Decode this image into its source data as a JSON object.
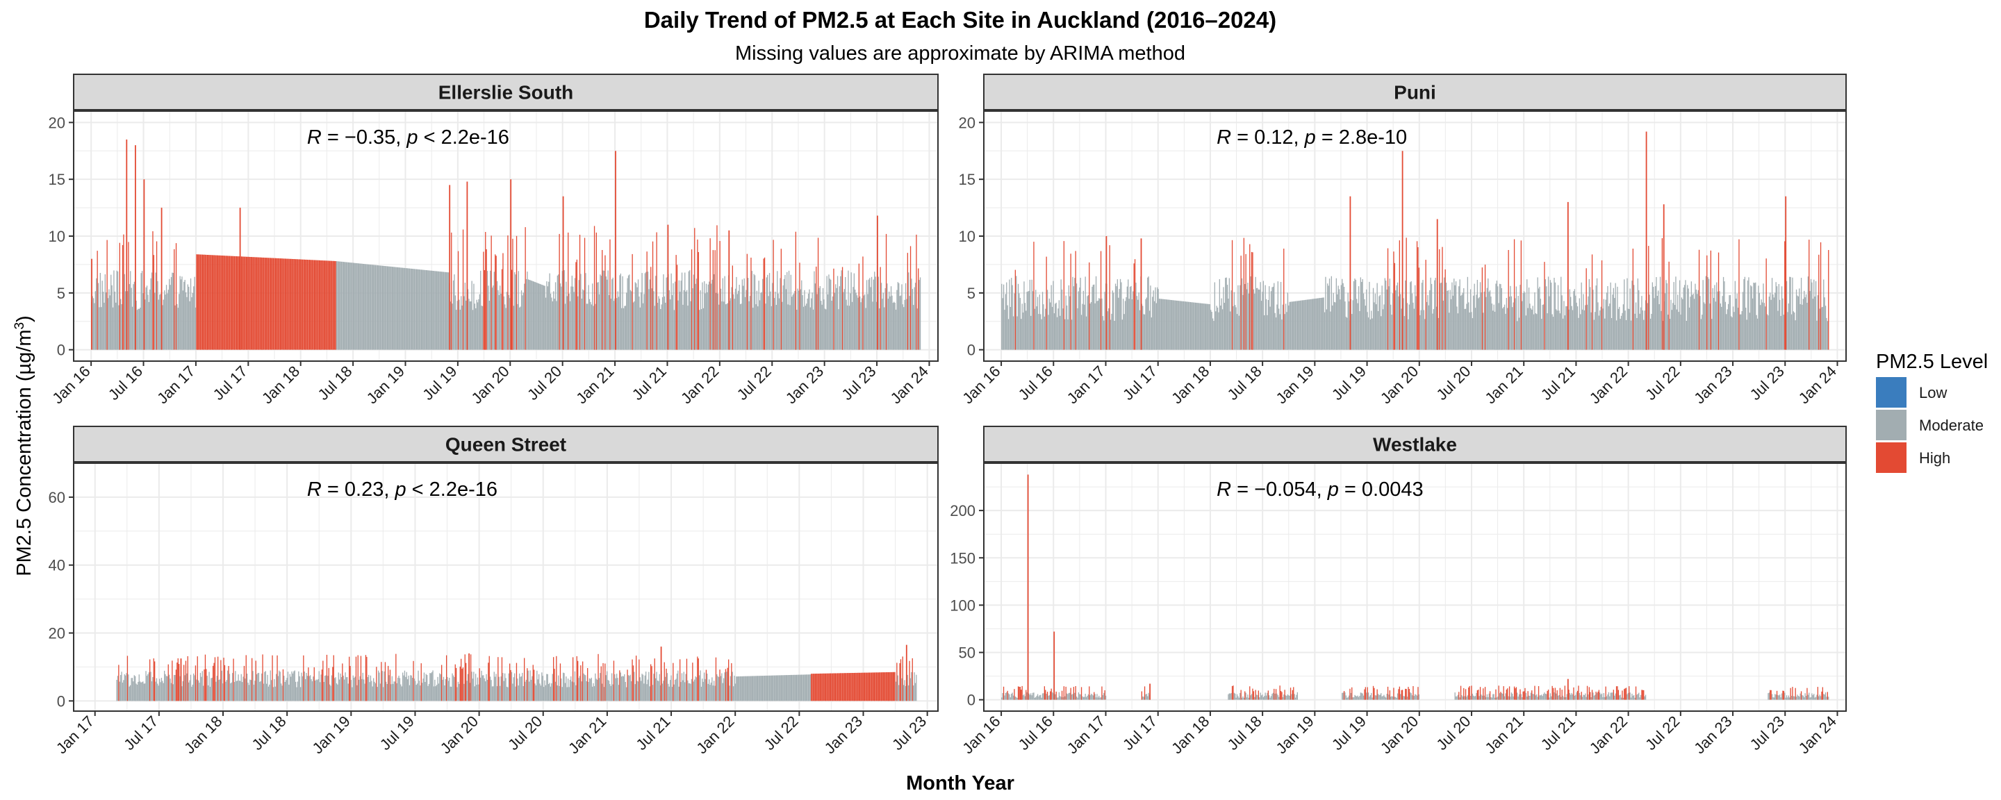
{
  "title": "Daily Trend of PM2.5 at Each Site in Auckland (2016–2024)",
  "subtitle": "Missing values are approximate by ARIMA method",
  "xlabel": "Month Year",
  "ylabel_main": "PM2.5 Concentration (µg/m",
  "ylabel_sup": "3",
  "ylabel_close": ")",
  "legend": {
    "title": "PM2.5 Level",
    "items": [
      {
        "label": "Low",
        "color": "#3a7dbe"
      },
      {
        "label": "Moderate",
        "color": "#a2adb1"
      },
      {
        "label": "High",
        "color": "#e34a33"
      }
    ]
  },
  "colors": {
    "low": "#3a7dbe",
    "moderate": "#a2adb1",
    "high": "#e34a33",
    "strip": "#d9d9d9",
    "grid": "#ebebeb"
  },
  "chart_data": [
    {
      "type": "bar",
      "panel": "Ellerslie South",
      "annotation": {
        "r_label": "R",
        "r_value": " = −0.35, ",
        "p_label": "p",
        "p_value": " < 2.2e-16"
      },
      "x_ticks": [
        "Jan 16",
        "Jul 16",
        "Jan 17",
        "Jul 17",
        "Jan 18",
        "Jul 18",
        "Jan 19",
        "Jul 19",
        "Jan 20",
        "Jul 20",
        "Jan 21",
        "Jul 21",
        "Jan 22",
        "Jul 22",
        "Jan 23",
        "Jul 23",
        "Jan 24"
      ],
      "x_range": [
        "2015-11",
        "2024-02"
      ],
      "ylim": [
        -1,
        21
      ],
      "y_ticks": [
        0,
        5,
        10,
        15,
        20
      ],
      "data_range": [
        "2016-01",
        "2023-12"
      ],
      "typical_low": 3.5,
      "typical_high": 7,
      "spike_range": [
        7,
        11
      ],
      "spike_probability": 0.12,
      "segments": [
        {
          "from": "2017-01",
          "to": "2018-05",
          "start": 8.4,
          "end": 7.8,
          "level": "High"
        },
        {
          "from": "2018-05",
          "to": "2019-06",
          "start": 7.8,
          "end": 6.8,
          "level": "Moderate"
        },
        {
          "from": "2020-03",
          "to": "2020-05",
          "start": 6.2,
          "end": 5.6,
          "level": "Moderate"
        }
      ],
      "peaks": [
        {
          "date": "2016-01",
          "value": 8
        },
        {
          "date": "2016-05",
          "value": 18.5
        },
        {
          "date": "2016-06",
          "value": 18
        },
        {
          "date": "2016-07",
          "value": 15
        },
        {
          "date": "2016-09",
          "value": 12.5
        },
        {
          "date": "2017-06",
          "value": 12.5
        },
        {
          "date": "2019-06",
          "value": 14.5
        },
        {
          "date": "2019-08",
          "value": 14.8
        },
        {
          "date": "2020-01",
          "value": 15
        },
        {
          "date": "2020-07",
          "value": 13.5
        },
        {
          "date": "2021-01",
          "value": 17.5
        },
        {
          "date": "2021-07",
          "value": 11
        },
        {
          "date": "2022-02",
          "value": 10.5
        },
        {
          "date": "2023-07",
          "value": 11.8
        }
      ]
    },
    {
      "type": "bar",
      "panel": "Puni",
      "annotation": {
        "r_label": "R",
        "r_value": " = 0.12, ",
        "p_label": "p",
        "p_value": " = 2.8e-10"
      },
      "x_ticks": [
        "Jan 16",
        "Jul 16",
        "Jan 17",
        "Jul 17",
        "Jan 18",
        "Jul 18",
        "Jan 19",
        "Jul 19",
        "Jan 20",
        "Jul 20",
        "Jan 21",
        "Jul 21",
        "Jan 22",
        "Jul 22",
        "Jan 23",
        "Jul 23",
        "Jan 24"
      ],
      "x_range": [
        "2015-11",
        "2024-02"
      ],
      "ylim": [
        -1,
        21
      ],
      "y_ticks": [
        0,
        5,
        10,
        15,
        20
      ],
      "data_range": [
        "2016-01",
        "2023-12"
      ],
      "typical_low": 2.5,
      "typical_high": 6.5,
      "spike_range": [
        7,
        10
      ],
      "spike_probability": 0.08,
      "segments": [
        {
          "from": "2017-07",
          "to": "2018-01",
          "start": 4.5,
          "end": 4.0,
          "level": "Moderate"
        },
        {
          "from": "2018-10",
          "to": "2019-02",
          "start": 4.2,
          "end": 4.6,
          "level": "Moderate"
        }
      ],
      "peaks": [
        {
          "date": "2017-01",
          "value": 10
        },
        {
          "date": "2017-05",
          "value": 9.8
        },
        {
          "date": "2019-05",
          "value": 13.5
        },
        {
          "date": "2019-11",
          "value": 17.5
        },
        {
          "date": "2020-03",
          "value": 11.5
        },
        {
          "date": "2021-06",
          "value": 13
        },
        {
          "date": "2022-03",
          "value": 19.2
        },
        {
          "date": "2022-05",
          "value": 12.8
        },
        {
          "date": "2023-07",
          "value": 13.5
        }
      ]
    },
    {
      "type": "bar",
      "panel": "Queen Street",
      "annotation": {
        "r_label": "R",
        "r_value": " = 0.23, ",
        "p_label": "p",
        "p_value": " < 2.2e-16"
      },
      "x_ticks": [
        "Jan 17",
        "Jul 17",
        "Jan 18",
        "Jul 18",
        "Jan 19",
        "Jul 19",
        "Jan 20",
        "Jul 20",
        "Jan 21",
        "Jul 21",
        "Jan 22",
        "Jul 22",
        "Jan 23",
        "Jul 23"
      ],
      "x_range": [
        "2016-11",
        "2023-08"
      ],
      "ylim": [
        -3,
        70
      ],
      "y_ticks": [
        0,
        20,
        40,
        60
      ],
      "data_range": [
        "2017-03",
        "2023-06"
      ],
      "typical_low": 4,
      "typical_high": 9,
      "spike_range": [
        9,
        14
      ],
      "spike_probability": 0.2,
      "segments": [
        {
          "from": "2022-01",
          "to": "2022-08",
          "start": 7.2,
          "end": 7.8,
          "level": "Moderate"
        },
        {
          "from": "2022-08",
          "to": "2023-04",
          "start": 8.0,
          "end": 8.5,
          "level": "High"
        }
      ],
      "peaks": [
        {
          "date": "2017-09",
          "value": 12.5
        },
        {
          "date": "2019-12",
          "value": 14
        },
        {
          "date": "2021-06",
          "value": 16
        },
        {
          "date": "2023-05",
          "value": 16.5
        }
      ]
    },
    {
      "type": "bar",
      "panel": "Westlake",
      "annotation": {
        "r_label": "R",
        "r_value": " = −0.054, ",
        "p_label": "p",
        "p_value": " = 0.0043"
      },
      "x_ticks": [
        "Jan 16",
        "Jul 16",
        "Jan 17",
        "Jul 17",
        "Jan 18",
        "Jul 18",
        "Jan 19",
        "Jul 19",
        "Jan 20",
        "Jul 20",
        "Jan 21",
        "Jul 21",
        "Jan 22",
        "Jul 22",
        "Jan 23",
        "Jul 23",
        "Jan 24"
      ],
      "x_range": [
        "2015-11",
        "2024-02"
      ],
      "ylim": [
        -12,
        250
      ],
      "y_ticks": [
        0,
        50,
        100,
        150,
        200
      ],
      "data_range": [
        "2016-01",
        "2023-12"
      ],
      "observed_periods": [
        {
          "from": "2016-01",
          "to": "2017-01"
        },
        {
          "from": "2017-05",
          "to": "2017-06"
        },
        {
          "from": "2018-03",
          "to": "2018-11"
        },
        {
          "from": "2019-04",
          "to": "2020-01"
        },
        {
          "from": "2020-05",
          "to": "2022-03"
        },
        {
          "from": "2023-05",
          "to": "2023-12"
        }
      ],
      "typical_low": 2,
      "typical_high": 8,
      "spike_range": [
        8,
        15
      ],
      "spike_probability": 0.3,
      "segments": [],
      "peaks": [
        {
          "date": "2016-04",
          "value": 238
        },
        {
          "date": "2016-07",
          "value": 72
        },
        {
          "date": "2017-06",
          "value": 17
        },
        {
          "date": "2021-06",
          "value": 22
        }
      ]
    }
  ]
}
